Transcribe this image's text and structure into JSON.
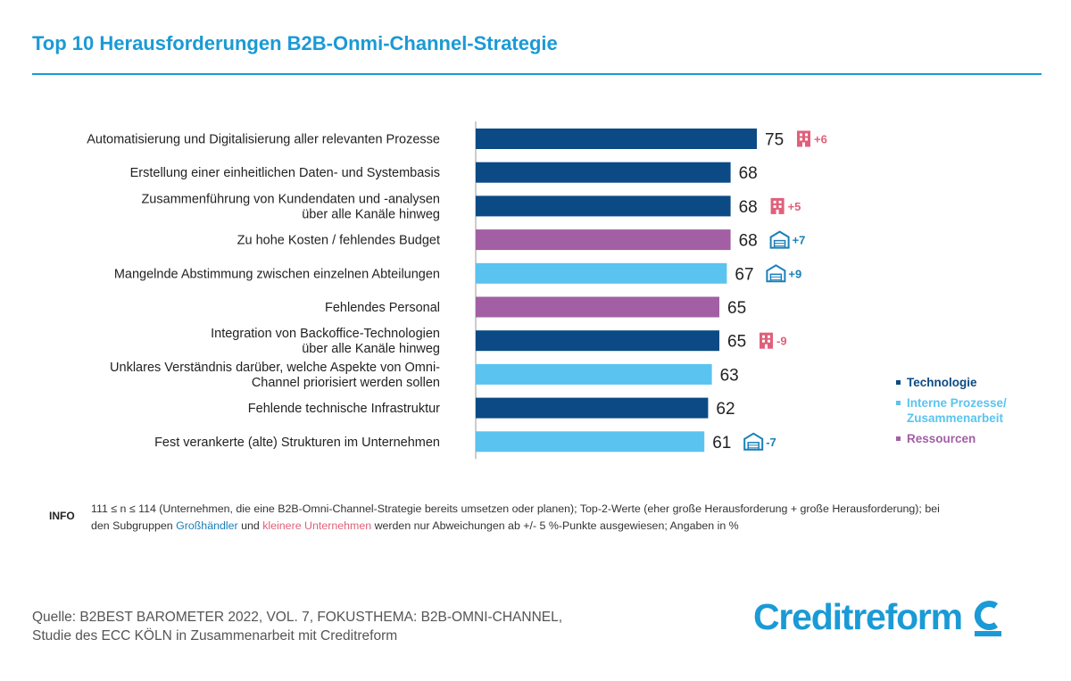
{
  "title": "Top 10 Herausforderungen B2B-Onmi-Channel-Strategie",
  "colors": {
    "accent": "#1a9ad6",
    "technologie": "#0b4a84",
    "interne_prozesse": "#5bc3ef",
    "ressourcen": "#a25fa4",
    "grosshaendler": "#1a7fb8",
    "kleinere_unternehmen": "#e0607a"
  },
  "chart_data": {
    "type": "bar",
    "orientation": "horizontal",
    "xlim": [
      0,
      100
    ],
    "categories": [
      "Automatisierung und Digitalisierung aller relevanten Prozesse",
      "Erstellung einer einheitlichen Daten- und Systembasis",
      "Zusammenführung von Kundendaten und -analysen\nüber alle Kanäle hinweg",
      "Zu hohe Kosten / fehlendes Budget",
      "Mangelnde Abstimmung zwischen einzelnen Abteilungen",
      "Fehlendes Personal",
      "Integration von Backoffice-Technologien\nüber alle Kanäle hinweg",
      "Unklares Verständnis darüber, welche Aspekte von Omni-\nChannel priorisiert werden sollen",
      "Fehlende technische Infrastruktur",
      "Fest verankerte (alte) Strukturen im Unternehmen"
    ],
    "values": [
      75,
      68,
      68,
      68,
      67,
      65,
      65,
      63,
      62,
      61
    ],
    "groups": [
      "technologie",
      "technologie",
      "technologie",
      "ressourcen",
      "interne_prozesse",
      "ressourcen",
      "technologie",
      "interne_prozesse",
      "technologie",
      "interne_prozesse"
    ],
    "deviations": [
      {
        "subgroup": "kleinere_unternehmen",
        "text": "+6"
      },
      null,
      {
        "subgroup": "kleinere_unternehmen",
        "text": "+5"
      },
      {
        "subgroup": "grosshaendler",
        "text": "+7"
      },
      {
        "subgroup": "grosshaendler",
        "text": "+9"
      },
      null,
      {
        "subgroup": "kleinere_unternehmen",
        "text": "-9"
      },
      null,
      null,
      {
        "subgroup": "grosshaendler",
        "text": "-7"
      }
    ],
    "legend": [
      {
        "key": "technologie",
        "label": "Technologie"
      },
      {
        "key": "interne_prozesse",
        "label": "Interne Prozesse/\nZusammenarbeit"
      },
      {
        "key": "ressourcen",
        "label": "Ressourcen"
      }
    ],
    "legend_position": "right"
  },
  "info": {
    "tag": "INFO",
    "text_before": "111 ≤ n ≤ 114 (Unternehmen, die eine B2B-Omni-Channel-Strategie bereits umsetzen oder planen); Top-2-Werte (eher große Herausforderung + große Herausforderung); bei den Subgruppen ",
    "wholesale": "Großhändler",
    "text_middle": " und ",
    "small": "kleinere Unternehmen",
    "text_after": " werden nur Abweichungen ab +/- 5 %-Punkte ausgewiesen; Angaben in %"
  },
  "source": {
    "line1": "Quelle: B2BEST BAROMETER 2022, VOL. 7, FOKUSTHEMA: B2B-OMNI-CHANNEL,",
    "line2": "Studie des ECC KÖLN in Zusammenarbeit mit Creditreform"
  },
  "logo": {
    "text": "Creditreform",
    "icon": "creditreform-c-logo-icon"
  },
  "icons": {
    "grosshaendler": "warehouse-icon",
    "kleinere_unternehmen": "building-icon"
  }
}
